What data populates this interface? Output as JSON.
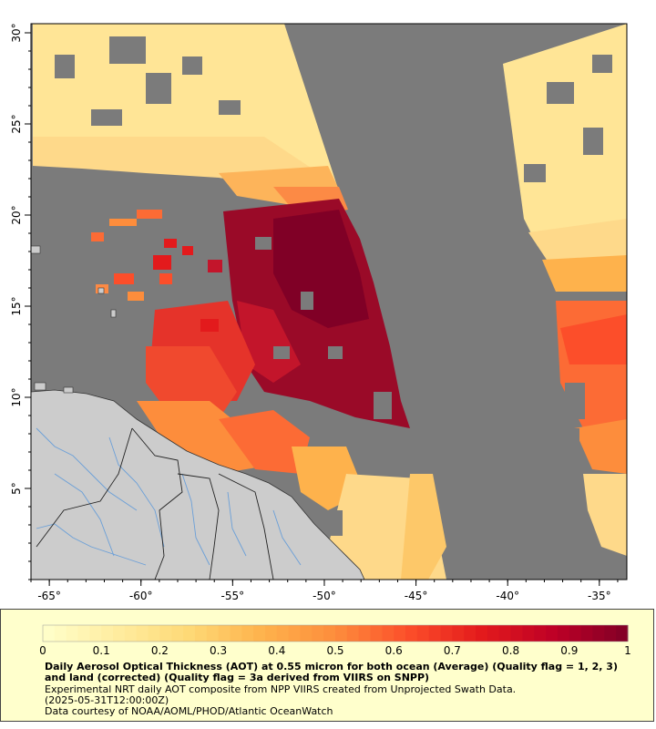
{
  "map": {
    "axes": {
      "x_ticks": [
        "-65°",
        "-60°",
        "-55°",
        "-50°",
        "-45°",
        "-40°",
        "-35°"
      ],
      "x_values": [
        -65,
        -60,
        -55,
        -50,
        -45,
        -40,
        -35
      ],
      "y_ticks": [
        "5°",
        "10°",
        "15°",
        "20°",
        "25°",
        "30°"
      ],
      "y_values": [
        5,
        10,
        15,
        20,
        25,
        30
      ],
      "lon_range": [
        -66,
        -33.5
      ],
      "lat_range": [
        0,
        30.5
      ]
    },
    "colors": {
      "no_data": "#7b7b7b",
      "land": "#cccccc",
      "rivers": "#6a9fd8",
      "borders": "#222222"
    }
  },
  "legend": {
    "ticks": [
      "0",
      "0.1",
      "0.2",
      "0.3",
      "0.4",
      "0.5",
      "0.6",
      "0.7",
      "0.8",
      "0.9",
      "1"
    ],
    "range": [
      0,
      1
    ],
    "colors": [
      "#ffffcc",
      "#ffeda0",
      "#fed976",
      "#feb24c",
      "#fd8d3c",
      "#fc4e2a",
      "#e31a1c",
      "#bd0026",
      "#800026"
    ],
    "title": "Daily Aerosol Optical Thickness (AOT) at 0.55 micron for both ocean (Average) (Quality flag = 1, 2, 3) and land (corrected) (Quality flag = 3a derived from VIIRS on SNPP)",
    "line2": "Experimental NRT daily AOT composite from NPP VIIRS created from Unprojected Swath Data.",
    "line3": "(2025-05-31T12:00:00Z)",
    "line4": "Data courtesy of NOAA/AOML/PHOD/Atlantic OceanWatch"
  }
}
